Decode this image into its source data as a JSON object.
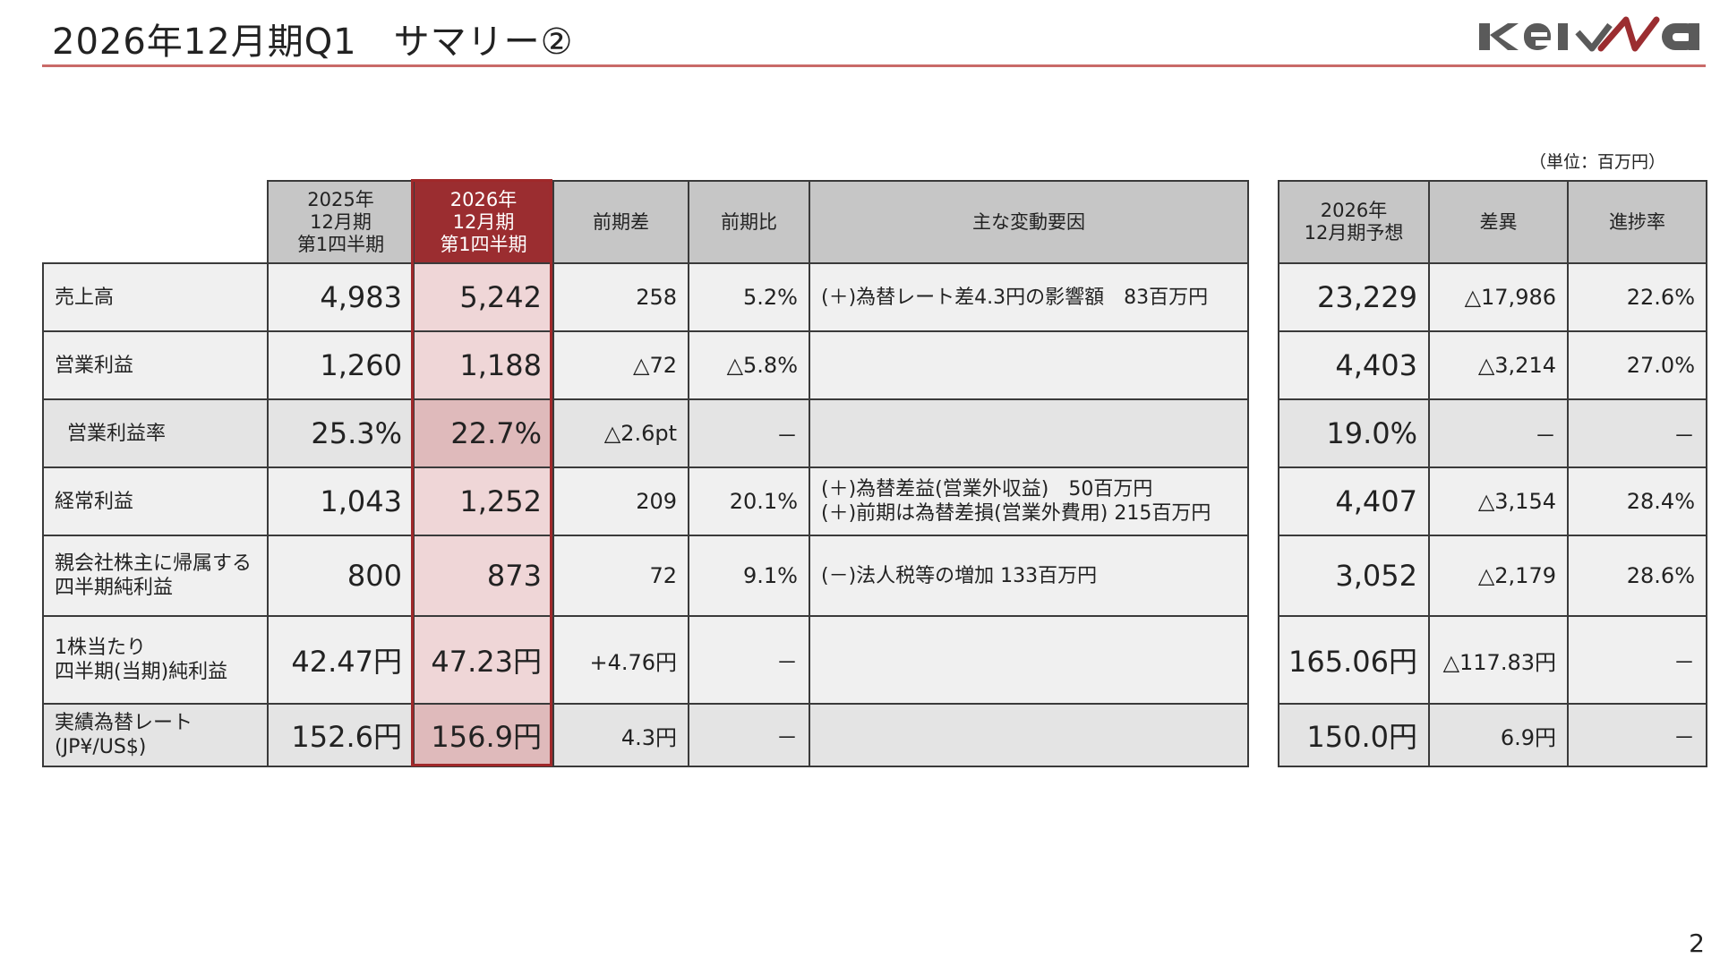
{
  "header": {
    "title": "2026年12月期Q1　サマリー②",
    "logo_text": "Keiwa",
    "accent_color": "#c0504d",
    "highlight_color": "#9b2d30"
  },
  "unit_note": "（単位：百万円）",
  "main_table": {
    "columns": [
      {
        "lines": [
          "2025年",
          "12月期",
          "第1四半期"
        ]
      },
      {
        "lines": [
          "2026年",
          "12月期",
          "第1四半期"
        ]
      },
      {
        "lines": [
          "前期差"
        ]
      },
      {
        "lines": [
          "前期比"
        ]
      },
      {
        "lines": [
          "主な変動要因"
        ]
      }
    ],
    "rows": [
      {
        "label": [
          "売上高"
        ],
        "prev": "4,983",
        "curr": "5,242",
        "diff": "258",
        "ratio": "5.2%",
        "factors": [
          "(＋)為替レート差4.3円の影響額　83百万円"
        ]
      },
      {
        "label": [
          "営業利益"
        ],
        "prev": "1,260",
        "curr": "1,188",
        "diff": "△72",
        "ratio": "△5.8%",
        "factors": []
      },
      {
        "label": [
          "営業利益率"
        ],
        "prev": "25.3%",
        "curr": "22.7%",
        "diff": "△2.6pt",
        "ratio": "－",
        "factors": []
      },
      {
        "label": [
          "経常利益"
        ],
        "prev": "1,043",
        "curr": "1,252",
        "diff": "209",
        "ratio": "20.1%",
        "factors": [
          "(＋)為替差益(営業外収益)　50百万円",
          "(＋)前期は為替差損(営業外費用) 215百万円"
        ]
      },
      {
        "label": [
          "親会社株主に帰属する",
          "四半期純利益"
        ],
        "prev": "800",
        "curr": "873",
        "diff": "72",
        "ratio": "9.1%",
        "factors": [
          "(－)法人税等の増加 133百万円"
        ]
      },
      {
        "label": [
          "1株当たり",
          "四半期(当期)純利益"
        ],
        "prev": "42.47円",
        "curr": "47.23円",
        "diff": "+4.76円",
        "ratio": "－",
        "factors": []
      },
      {
        "label": [
          "実績為替レート",
          "(JP¥/US$)"
        ],
        "prev": "152.6円",
        "curr": "156.9円",
        "diff": "4.3円",
        "ratio": "－",
        "factors": []
      }
    ]
  },
  "forecast_table": {
    "columns": [
      {
        "lines": [
          "2026年",
          "12月期予想"
        ]
      },
      {
        "lines": [
          "差異"
        ]
      },
      {
        "lines": [
          "進捗率"
        ]
      }
    ],
    "rows": [
      {
        "forecast": "23,229",
        "diff": "△17,986",
        "progress": "22.6%"
      },
      {
        "forecast": "4,403",
        "diff": "△3,214",
        "progress": "27.0%"
      },
      {
        "forecast": "19.0%",
        "diff": "－",
        "progress": "－"
      },
      {
        "forecast": "4,407",
        "diff": "△3,154",
        "progress": "28.4%"
      },
      {
        "forecast": "3,052",
        "diff": "△2,179",
        "progress": "28.6%"
      },
      {
        "forecast": "165.06円",
        "diff": "△117.83円",
        "progress": "－"
      },
      {
        "forecast": "150.0円",
        "diff": "6.9円",
        "progress": "－"
      }
    ]
  },
  "page_number": "2"
}
